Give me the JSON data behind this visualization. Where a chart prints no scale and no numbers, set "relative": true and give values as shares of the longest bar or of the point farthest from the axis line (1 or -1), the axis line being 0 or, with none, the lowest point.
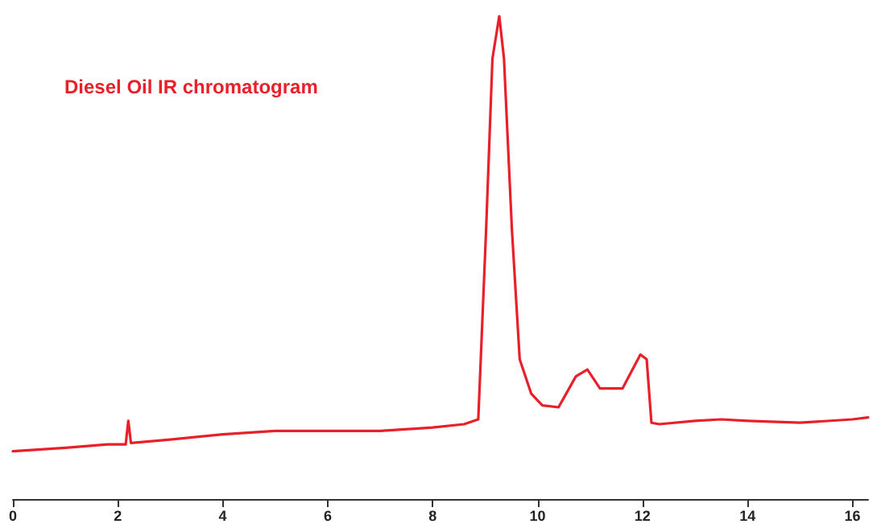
{
  "chart_data": {
    "type": "line",
    "relative": true,
    "tick_labels": "x",
    "marker": "none",
    "line_style": "solid",
    "annotations": [
      "Diesel Oil IR chromatogram"
    ],
    "xlim": [
      0,
      16.3
    ],
    "xticks": [
      0,
      2,
      4,
      6,
      8,
      10,
      12,
      14,
      16
    ],
    "series": [
      {
        "color": "#e8202a",
        "x": [
          0,
          1,
          1.8,
          2.15,
          2.2,
          2.25,
          3,
          4,
          5,
          6,
          7,
          8,
          8.6,
          8.87,
          9.02,
          9.14,
          9.27,
          9.36,
          9.51,
          9.66,
          9.88,
          10.09,
          10.4,
          10.73,
          10.95,
          11.19,
          11.62,
          11.96,
          12.08,
          12.17,
          12.32,
          13,
          13.5,
          14,
          15,
          16,
          16.3
        ],
        "values": [
          0.099,
          0.106,
          0.113,
          0.113,
          0.162,
          0.116,
          0.123,
          0.134,
          0.141,
          0.141,
          0.141,
          0.148,
          0.155,
          0.165,
          0.56,
          0.912,
          1,
          0.912,
          0.56,
          0.289,
          0.218,
          0.194,
          0.19,
          0.254,
          0.268,
          0.229,
          0.229,
          0.299,
          0.289,
          0.158,
          0.155,
          0.162,
          0.165,
          0.162,
          0.158,
          0.165,
          0.169
        ]
      }
    ]
  }
}
